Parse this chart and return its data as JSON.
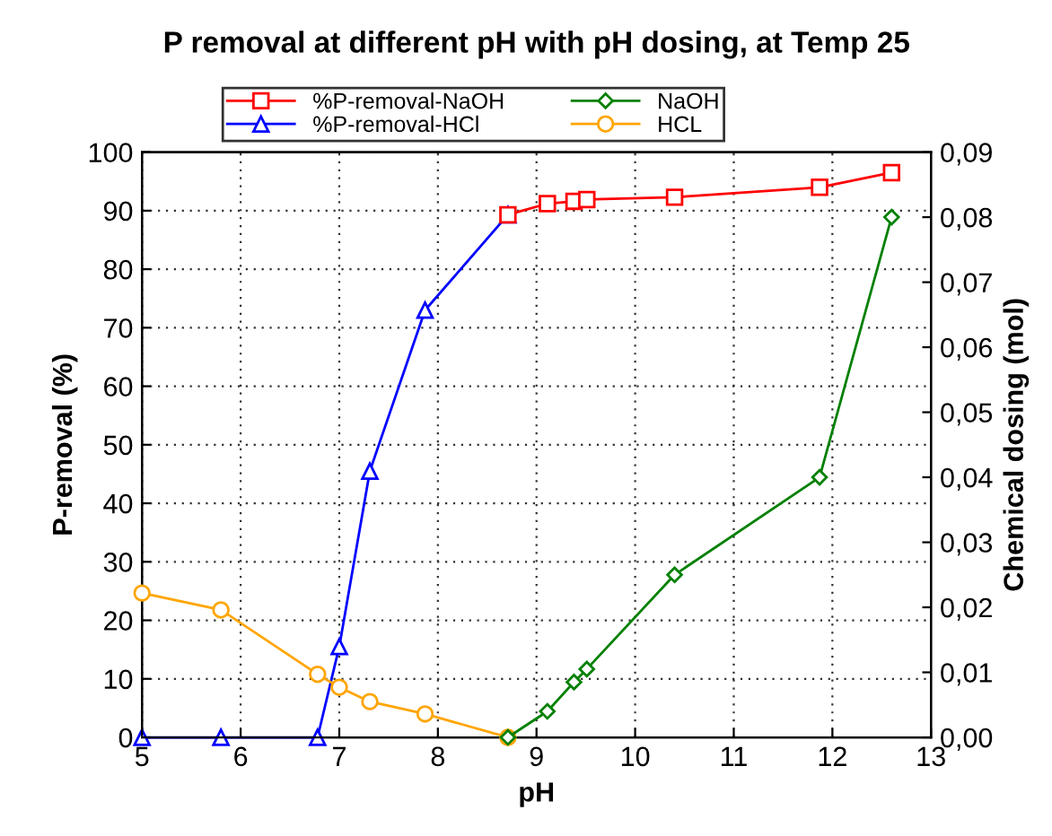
{
  "chart_data": {
    "type": "line",
    "title": "P removal at different pH with pH dosing, at Temp 25",
    "xlabel": "pH",
    "ylabel": "P-removal (%)",
    "y2label": "Chemical dosing (mol)",
    "series": [
      {
        "name": "%P-removal-NaOH",
        "color": "#ff0000",
        "marker": "square",
        "x": [
          8.71,
          9.11,
          9.38,
          9.51,
          10.4,
          11.87,
          12.6
        ],
        "values": [
          89.3,
          91.2,
          91.6,
          91.9,
          92.3,
          94,
          96.5
        ]
      },
      {
        "name": "%P-removal-HCl",
        "color": "#0000ff",
        "marker": "triangle",
        "x": [
          5,
          5.8,
          6.78,
          7.0,
          7.31,
          7.87,
          8.71
        ],
        "values": [
          0,
          0,
          0,
          15.5,
          45.5,
          73,
          89.3
        ]
      },
      {
        "name": "NaOH",
        "color": "#008000",
        "marker": "diamond",
        "axis": "y2",
        "x": [
          8.71,
          9.11,
          9.38,
          9.51,
          10.4,
          11.87,
          12.6
        ],
        "values": [
          0,
          0.004,
          0.0085,
          0.0105,
          0.025,
          0.04,
          0.08
        ]
      },
      {
        "name": "HCL",
        "color": "#ffa500",
        "marker": "circle",
        "axis": "y2",
        "x": [
          5,
          5.8,
          6.78,
          7.0,
          7.31,
          7.87,
          8.71
        ],
        "values": [
          0.0222,
          0.0196,
          0.0097,
          0.0077,
          0.0055,
          0.0036,
          0
        ]
      }
    ],
    "xlim": [
      5,
      13
    ],
    "xticks": [
      5,
      6,
      7,
      8,
      9,
      10,
      11,
      12,
      13
    ],
    "ylim": [
      0,
      100
    ],
    "yticks": [
      0,
      10,
      20,
      30,
      40,
      50,
      60,
      70,
      80,
      90,
      100
    ],
    "y2lim": [
      0,
      0.09
    ],
    "y2ticks": [
      {
        "value": 0,
        "label": "0,00"
      },
      {
        "value": 0.01,
        "label": "0,01"
      },
      {
        "value": 0.02,
        "label": "0,02"
      },
      {
        "value": 0.03,
        "label": "0,03"
      },
      {
        "value": 0.04,
        "label": "0,04"
      },
      {
        "value": 0.05,
        "label": "0,05"
      },
      {
        "value": 0.06,
        "label": "0,06"
      },
      {
        "value": 0.07,
        "label": "0,07"
      },
      {
        "value": 0.08,
        "label": "0,08"
      },
      {
        "value": 0.09,
        "label": "0,09"
      }
    ],
    "grid": true,
    "legend": "top",
    "line_style": "solid"
  }
}
